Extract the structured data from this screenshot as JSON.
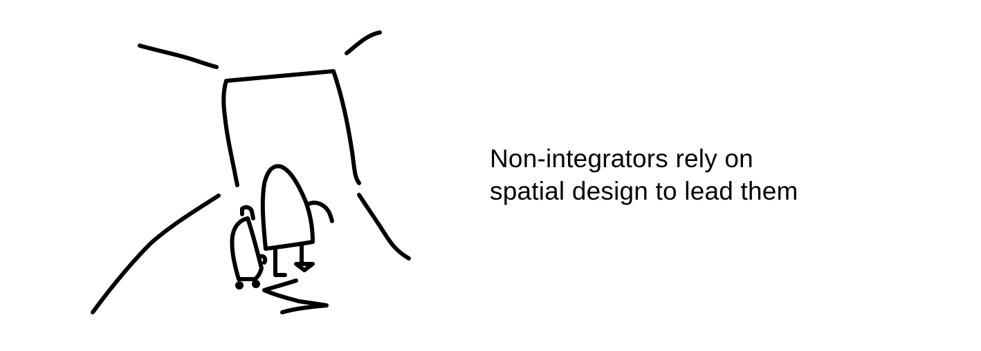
{
  "caption": {
    "line1": "Non-integrators rely on",
    "line2": "spatial design to lead them"
  },
  "colors": {
    "background": "#ffffff",
    "ink": "#000000"
  }
}
